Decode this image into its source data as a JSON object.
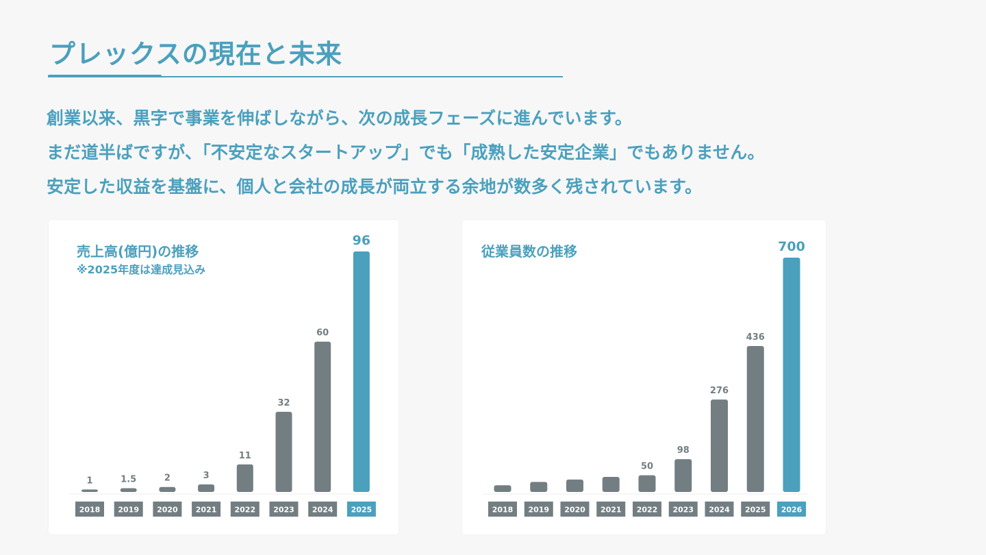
{
  "page": {
    "title": "プレックスの現在と未来",
    "intro_lines": [
      "創業以来、黒字で事業を伸ばしながら、次の成長フェーズに進んでいます。",
      "まだ道半ばですが、「不安定なスタートアップ」でも「成熟した安定企業」でもありません。",
      "安定した収益を基盤に、個人と会社の成長が両立する余地が数多く残されています。"
    ]
  },
  "colors": {
    "accent": "#4ba0bd",
    "bar": "#737e82",
    "highlight": "#4ba0bd",
    "background": "#f7f7f7",
    "panel": "#ffffff"
  },
  "chart_data": [
    {
      "type": "bar",
      "title": "売上高(億円)の推移",
      "note": "※2025年度は達成見込み",
      "categories": [
        "2018",
        "2019",
        "2020",
        "2021",
        "2022",
        "2023",
        "2024",
        "2025"
      ],
      "values": [
        1,
        1.5,
        2,
        3,
        11,
        32,
        60,
        96
      ],
      "value_labels": [
        "1",
        "1.5",
        "2",
        "3",
        "11",
        "32",
        "60",
        "96"
      ],
      "highlight_index": 7
    },
    {
      "type": "bar",
      "title": "従業員数の推移",
      "categories": [
        "2018",
        "2019",
        "2020",
        "2021",
        "2022",
        "2023",
        "2024",
        "2025",
        "2026"
      ],
      "values": [
        20,
        30,
        37,
        45,
        50,
        98,
        276,
        436,
        700
      ],
      "value_labels": [
        "",
        "",
        "",
        "",
        "50",
        "98",
        "276",
        "436",
        "700"
      ],
      "highlight_index": 8
    }
  ]
}
